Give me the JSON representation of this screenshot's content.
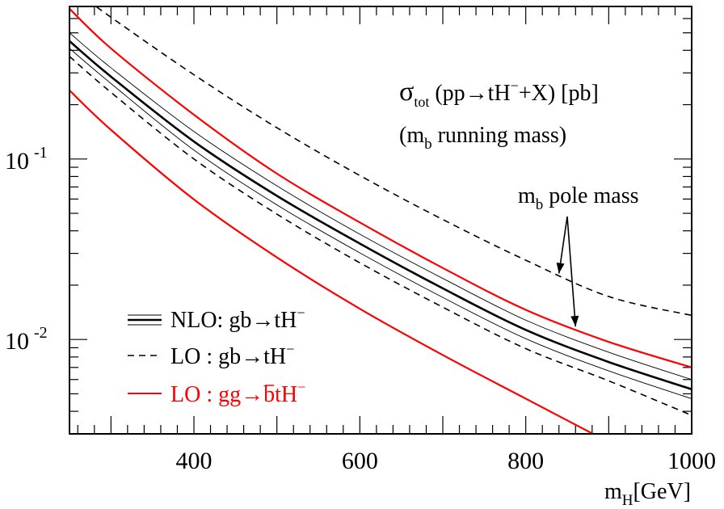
{
  "chart_data": {
    "type": "line",
    "x_scale": "linear",
    "y_scale": "log",
    "xlim": [
      250,
      1000
    ],
    "ylim": [
      0.003,
      0.7
    ],
    "xlabel": {
      "main": "m",
      "sub": "H",
      "rest": "[GeV]"
    },
    "ylabel": "",
    "x_ticks": [
      {
        "value": 400,
        "label": "400"
      },
      {
        "value": 600,
        "label": "600"
      },
      {
        "value": 800,
        "label": "800"
      },
      {
        "value": 1000,
        "label": "1000"
      }
    ],
    "y_ticks": [
      {
        "value": 0.1,
        "base": "10",
        "exp": "-1"
      },
      {
        "value": 0.01,
        "base": "10",
        "exp": "-2"
      }
    ],
    "title_lines": [
      {
        "sym": "σ",
        "sub": "tot",
        "text": " (pp→tH",
        "sup": "−",
        "tail": "+X) [pb]"
      },
      {
        "text": "(m",
        "sub": "b",
        "tail": " running mass)"
      }
    ],
    "annotation": {
      "text": "m",
      "sub": "b",
      "tail": " pole mass",
      "arrow_targets": [
        {
          "x": 840,
          "y": 0.0232
        },
        {
          "x": 860,
          "y": 0.0118
        }
      ]
    },
    "legend": {
      "placement": "bottom-left",
      "entries": [
        {
          "label": "NLO: gb→tH",
          "sup": "−",
          "style": "band"
        },
        {
          "label": "LO : gb→tH",
          "sup": "−",
          "style": "dashed"
        },
        {
          "label_pre": "LO : gg→",
          "bar": "b",
          "label_post": "tH",
          "sup": "−",
          "style": "red",
          "color": "#ff0000"
        }
      ]
    },
    "series": [
      {
        "style": "dashed",
        "color": "#000000",
        "x": [
          250,
          300,
          400,
          500,
          600,
          700,
          800,
          900,
          1000
        ],
        "y": [
          0.9,
          0.61,
          0.293,
          0.149,
          0.081,
          0.0462,
          0.0275,
          0.0173,
          0.0136
        ]
      },
      {
        "style": "red",
        "color": "#ff0000",
        "x": [
          250,
          300,
          400,
          500,
          600,
          700,
          800,
          900,
          1000
        ],
        "y": [
          0.68,
          0.41,
          0.176,
          0.083,
          0.0445,
          0.0249,
          0.0146,
          0.0097,
          0.007
        ]
      },
      {
        "style": "thin",
        "color": "#000000",
        "x": [
          250,
          300,
          400,
          500,
          600,
          700,
          800,
          900,
          1000
        ],
        "y": [
          0.5,
          0.32,
          0.142,
          0.071,
          0.0383,
          0.0218,
          0.0128,
          0.0085,
          0.006
        ]
      },
      {
        "style": "thick",
        "color": "#000000",
        "x": [
          250,
          300,
          400,
          500,
          600,
          700,
          800,
          900,
          1000
        ],
        "y": [
          0.45,
          0.286,
          0.125,
          0.0625,
          0.034,
          0.0192,
          0.0113,
          0.0075,
          0.0053
        ]
      },
      {
        "style": "thin",
        "color": "#000000",
        "x": [
          250,
          300,
          400,
          500,
          600,
          700,
          800,
          900,
          1000
        ],
        "y": [
          0.41,
          0.262,
          0.112,
          0.0557,
          0.0302,
          0.0171,
          0.0101,
          0.0067,
          0.0047
        ]
      },
      {
        "style": "dashed",
        "color": "#000000",
        "x": [
          250,
          300,
          400,
          500,
          600,
          700,
          800,
          900,
          1000
        ],
        "y": [
          0.37,
          0.234,
          0.1,
          0.0495,
          0.0266,
          0.0151,
          0.0089,
          0.0059,
          0.0038
        ]
      },
      {
        "style": "red",
        "color": "#ff0000",
        "x": [
          250,
          300,
          400,
          500,
          600,
          700,
          800,
          900,
          920
        ],
        "y": [
          0.24,
          0.145,
          0.0597,
          0.0285,
          0.0148,
          0.0082,
          0.0047,
          0.0027,
          0.0024
        ]
      }
    ]
  }
}
